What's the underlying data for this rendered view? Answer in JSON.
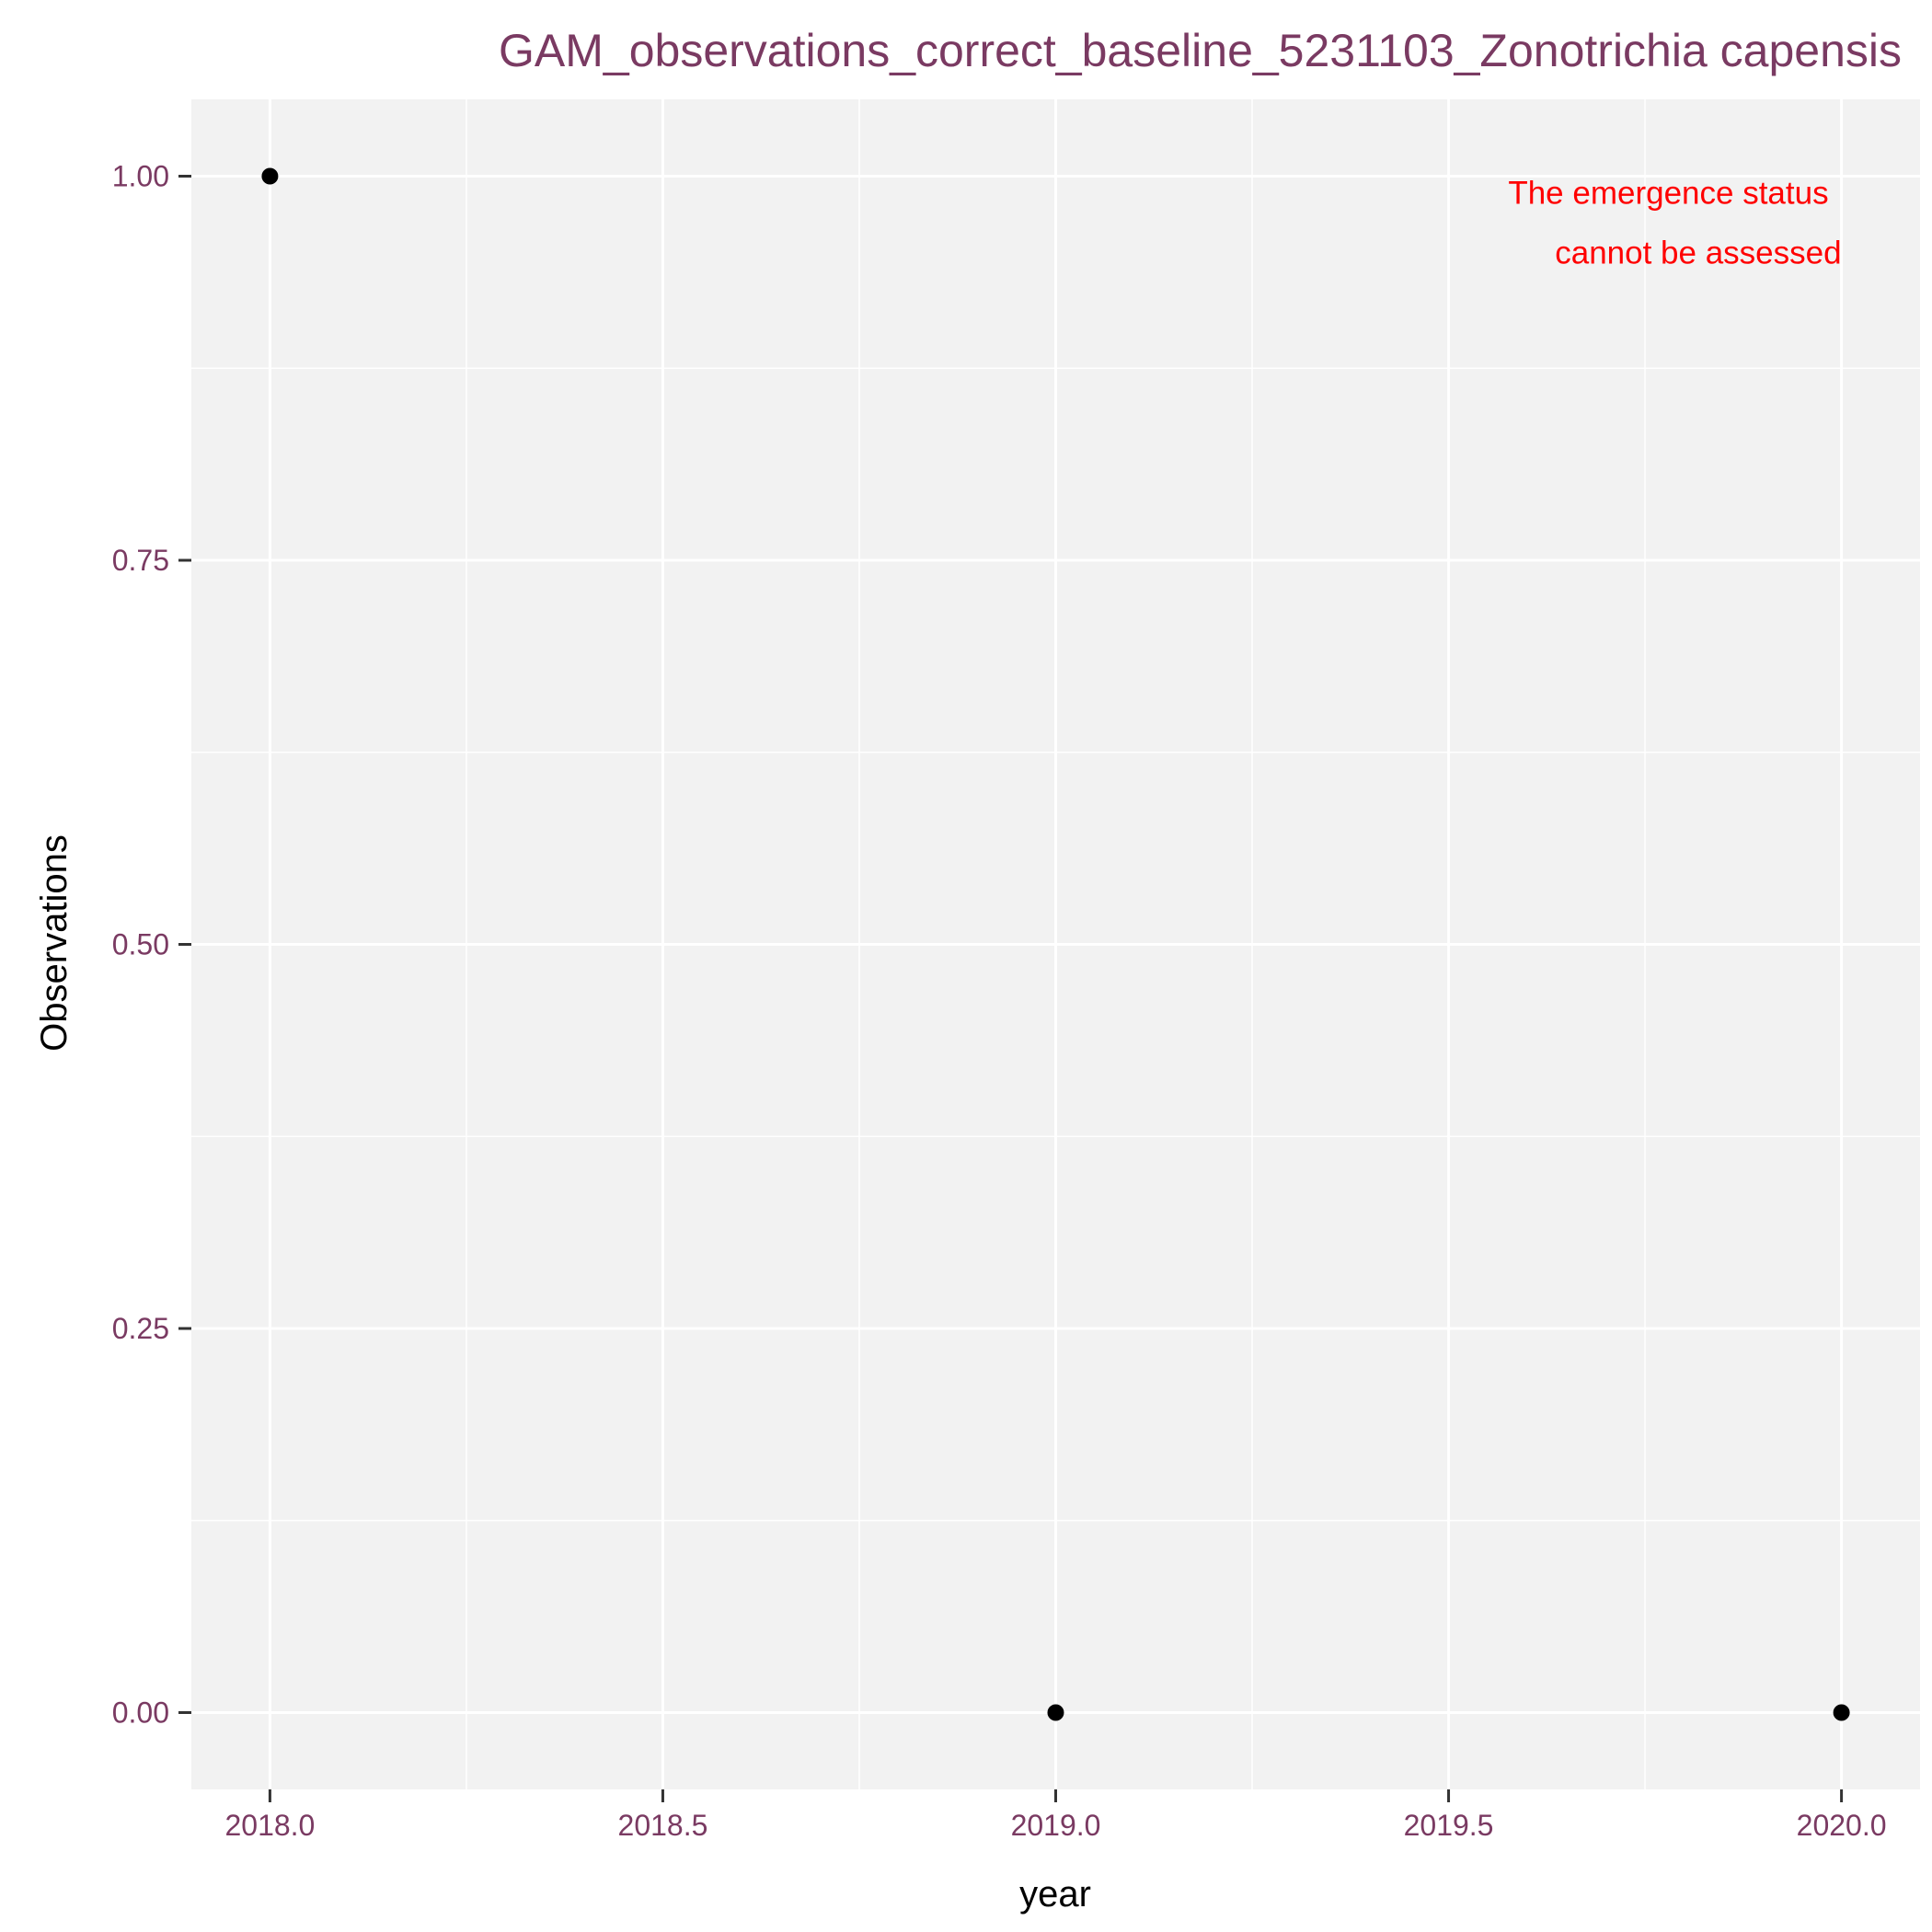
{
  "colors": {
    "panel_background": "#f2f2f2",
    "grid_major": "#ffffff",
    "grid_minor": "#ffffff",
    "point": "#000000",
    "title": "#7a3a62",
    "tick_label": "#7a3a62",
    "annotation": "#ff0000"
  },
  "chart_data": {
    "type": "scatter",
    "title": "GAM_observations_correct_baseline_5231103_Zonotrichia capensis",
    "xlabel": "year",
    "ylabel": "Observations",
    "xlim": [
      2017.9,
      2020.1
    ],
    "ylim": [
      -0.05,
      1.05
    ],
    "x_ticks": [
      2018.0,
      2018.5,
      2019.0,
      2019.5,
      2020.0
    ],
    "x_tick_labels": [
      "2018.0",
      "2018.5",
      "2019.0",
      "2019.5",
      "2020.0"
    ],
    "y_ticks": [
      0.0,
      0.25,
      0.5,
      0.75,
      1.0
    ],
    "y_tick_labels": [
      "0.00",
      "0.25",
      "0.50",
      "0.75",
      "1.00"
    ],
    "grid": true,
    "points": [
      {
        "x": 2018,
        "y": 1
      },
      {
        "x": 2019,
        "y": 0
      },
      {
        "x": 2020,
        "y": 0
      }
    ],
    "annotation": {
      "lines": [
        "The emergence status",
        "cannot be assessed"
      ],
      "x": 2020.0,
      "y": 1.0
    }
  }
}
